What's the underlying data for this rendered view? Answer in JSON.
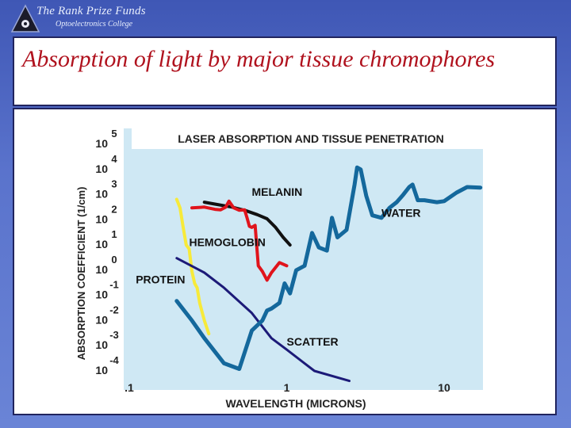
{
  "header": {
    "brand_name": "The Rank Prize Funds",
    "brand_sub": "Optoelectronics College"
  },
  "slide": {
    "title": "Absorption of light by major tissue chromophores"
  },
  "chart_data": {
    "type": "line",
    "title": "LASER ABSORPTION AND TISSUE PENETRATION",
    "xlabel": "WAVELENGTH (MICRONS)",
    "ylabel": "ABSORPTION COEFFICIENT (1/cm)",
    "x_scale": "log",
    "y_scale": "log",
    "xlim": [
      0.1,
      20
    ],
    "ylim": [
      3e-05,
      300000
    ],
    "x_ticks": [
      {
        "value": 0.1,
        "label": ".1"
      },
      {
        "value": 1,
        "label": "1"
      },
      {
        "value": 10,
        "label": "10"
      }
    ],
    "y_ticks": [
      {
        "value": 0.0001,
        "base": "10",
        "exp": "-4"
      },
      {
        "value": 0.001,
        "base": "10",
        "exp": "-3"
      },
      {
        "value": 0.01,
        "base": "10",
        "exp": "-2"
      },
      {
        "value": 0.1,
        "base": "10",
        "exp": "-1"
      },
      {
        "value": 1,
        "base": "10",
        "exp": "0"
      },
      {
        "value": 10,
        "base": "10",
        "exp": "1"
      },
      {
        "value": 100,
        "base": "10",
        "exp": "2"
      },
      {
        "value": 1000,
        "base": "10",
        "exp": "3"
      },
      {
        "value": 10000,
        "base": "10",
        "exp": "4"
      },
      {
        "value": 100000,
        "base": "10",
        "exp": "5"
      }
    ],
    "series": [
      {
        "name": "MELANIN",
        "color": "#111111",
        "x": [
          0.3,
          0.35,
          0.45,
          0.55,
          0.65,
          0.75,
          0.85,
          0.95,
          1.05
        ],
        "y": [
          500,
          420,
          320,
          230,
          160,
          110,
          50,
          20,
          10
        ]
      },
      {
        "name": "HEMOGLOBIN",
        "color": "#e0141c",
        "x": [
          0.25,
          0.3,
          0.35,
          0.38,
          0.41,
          0.43,
          0.46,
          0.5,
          0.54,
          0.56,
          0.58,
          0.6,
          0.63,
          0.66,
          0.7,
          0.75,
          0.8,
          0.9,
          1.0
        ],
        "y": [
          300,
          320,
          260,
          250,
          320,
          550,
          300,
          240,
          250,
          120,
          55,
          50,
          60,
          1.5,
          0.9,
          0.4,
          0.8,
          2.0,
          1.5
        ]
      },
      {
        "name": "PROTEIN",
        "color": "#f7ea3a",
        "x": [
          0.2,
          0.21,
          0.22,
          0.23,
          0.24,
          0.25,
          0.26,
          0.27,
          0.28,
          0.3,
          0.32
        ],
        "y": [
          650,
          300,
          50,
          10,
          7,
          0.9,
          0.3,
          0.2,
          0.05,
          0.01,
          0.003
        ]
      },
      {
        "name": "SCATTER",
        "color": "#1c1a78",
        "x": [
          0.2,
          0.3,
          0.4,
          0.6,
          0.8,
          1.0,
          1.5,
          2.5
        ],
        "y": [
          3,
          0.8,
          0.2,
          0.02,
          0.002,
          0.0007,
          0.0001,
          4e-05
        ]
      },
      {
        "name": "WATER",
        "color": "#14689c",
        "x": [
          0.2,
          0.25,
          0.3,
          0.4,
          0.5,
          0.6,
          0.7,
          0.75,
          0.8,
          0.9,
          0.97,
          1.05,
          1.15,
          1.3,
          1.45,
          1.6,
          1.8,
          1.94,
          2.1,
          2.4,
          2.7,
          2.8,
          2.95,
          3.2,
          3.5,
          4,
          4.5,
          5,
          5.5,
          6,
          6.3,
          6.8,
          7.5,
          9,
          10,
          12,
          14,
          17
        ],
        "y": [
          0.06,
          0.01,
          0.002,
          0.0002,
          0.00012,
          0.004,
          0.01,
          0.025,
          0.03,
          0.05,
          0.3,
          0.12,
          1.0,
          1.5,
          30,
          8,
          6,
          120,
          20,
          40,
          2500,
          12000,
          10000,
          900,
          150,
          120,
          300,
          500,
          1000,
          2000,
          2500,
          600,
          600,
          500,
          550,
          1200,
          2000,
          1900
        ]
      }
    ],
    "annotations": [
      {
        "text": "MELANIN",
        "x": 0.6,
        "y": 900,
        "color": "#111111"
      },
      {
        "text": "HEMOGLOBIN",
        "x": 0.24,
        "y": 9,
        "color": "#111111"
      },
      {
        "text": "PROTEIN",
        "x": 0.11,
        "y": 0.3,
        "color": "#111111"
      },
      {
        "text": "SCATTER",
        "x": 1.0,
        "y": 0.001,
        "color": "#111111"
      },
      {
        "text": "WATER",
        "x": 4.0,
        "y": 130,
        "color": "#111111"
      }
    ],
    "grid": false,
    "legend": "none"
  }
}
